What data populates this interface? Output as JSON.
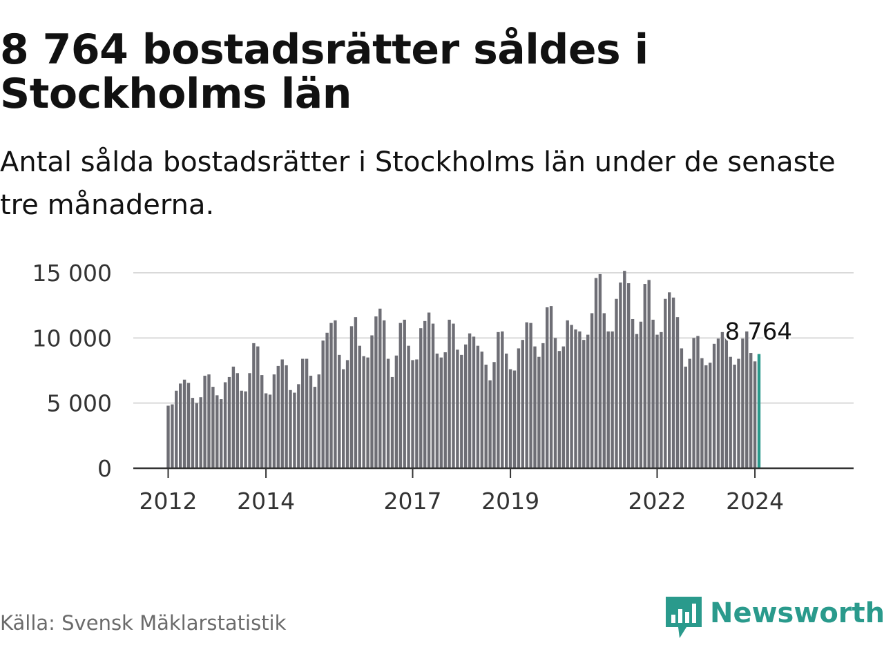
{
  "header": {
    "title": "8 764 bostadsrätter såldes i Stockholms län",
    "subtitle": "Antal sålda bostadsrätter i Stockholms län under de senaste tre månaderna."
  },
  "footer": {
    "source": "Källa: Svensk Mäklarstatistik",
    "brand": "Newsworthy"
  },
  "colors": {
    "bar": "#6e6e75",
    "highlight": "#2a9a8c",
    "grid": "#d9d9d9",
    "axis": "#333333",
    "text": "#333333",
    "brand": "#2a9a8c"
  },
  "chart_data": {
    "type": "bar",
    "title": "8 764 bostadsrätter såldes i Stockholms län",
    "xlabel": "",
    "ylabel": "",
    "ylim": [
      0,
      15000
    ],
    "yticks": [
      0,
      5000,
      10000,
      15000
    ],
    "ytick_labels": [
      "0",
      "5 000",
      "10 000",
      "15 000"
    ],
    "xticks": [
      {
        "index": 0,
        "label": "2012"
      },
      {
        "index": 24,
        "label": "2014"
      },
      {
        "index": 60,
        "label": "2017"
      },
      {
        "index": 84,
        "label": "2019"
      },
      {
        "index": 120,
        "label": "2022"
      },
      {
        "index": 144,
        "label": "2024"
      }
    ],
    "start": "2012-01",
    "frequency": "monthly, rolling three-month total",
    "grid": true,
    "highlight": {
      "index": 145,
      "label": "8 764"
    },
    "values": [
      4800,
      4900,
      5950,
      6500,
      6800,
      6550,
      5400,
      5000,
      5450,
      7100,
      7200,
      6250,
      5600,
      5300,
      6600,
      7000,
      7800,
      7300,
      5950,
      5900,
      7300,
      9600,
      9350,
      7150,
      5750,
      5650,
      7200,
      7850,
      8350,
      7900,
      6000,
      5800,
      6450,
      8400,
      8400,
      7100,
      6250,
      7200,
      9800,
      10400,
      11150,
      11350,
      8700,
      7600,
      8300,
      10900,
      11600,
      9400,
      8600,
      8500,
      10200,
      11650,
      12250,
      11350,
      8400,
      7000,
      8650,
      11150,
      11400,
      9400,
      8300,
      8350,
      10750,
      11300,
      11950,
      11100,
      8800,
      8500,
      8900,
      11400,
      11100,
      9100,
      8700,
      9500,
      10350,
      10100,
      9400,
      8950,
      7950,
      6750,
      8150,
      10450,
      10500,
      8800,
      7600,
      7500,
      9200,
      9850,
      11200,
      11150,
      9350,
      8550,
      9600,
      12350,
      12450,
      10000,
      9000,
      9350,
      11350,
      11000,
      10650,
      10500,
      9850,
      10250,
      11900,
      14600,
      14900,
      11900,
      10500,
      10500,
      13000,
      14250,
      15150,
      14200,
      11450,
      10300,
      11250,
      14150,
      14450,
      11400,
      10250,
      10450,
      13000,
      13500,
      13100,
      11600,
      9200,
      7800,
      8400,
      10000,
      10150,
      8450,
      7900,
      8100,
      9550,
      9950,
      10450,
      10100,
      8550,
      7950,
      8400,
      9950,
      10500,
      8850,
      8200,
      8764
    ]
  }
}
